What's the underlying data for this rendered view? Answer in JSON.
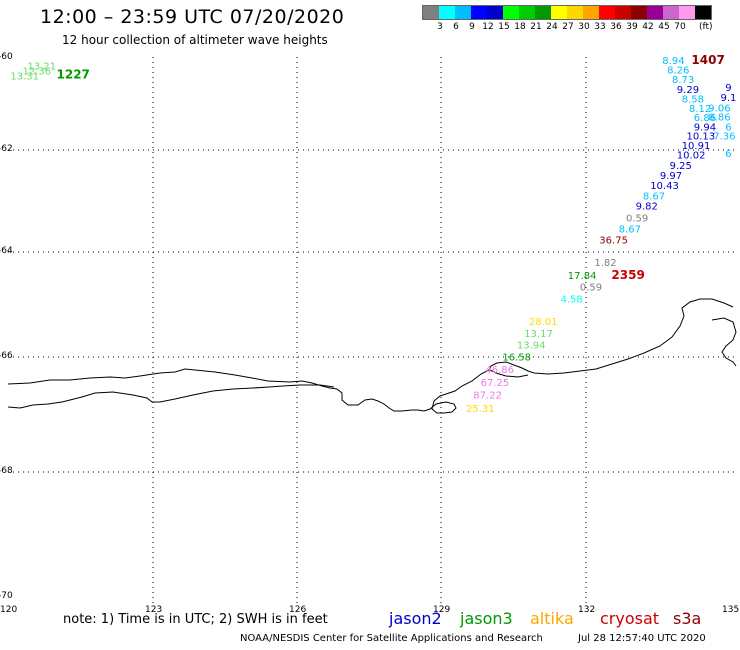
{
  "header": {
    "title": "12:00 – 23:59 UTC 07/20/2020",
    "subtitle": "12 hour collection of altimeter wave heights"
  },
  "legend": {
    "unit": "(ft)",
    "colors": [
      "#808080",
      "#00ffff",
      "#00bfff",
      "#0000ff",
      "#0000cd",
      "#00ff00",
      "#00cd00",
      "#009900",
      "#ffff00",
      "#ffd700",
      "#ffa500",
      "#ff0000",
      "#cd0000",
      "#8b0000",
      "#990099",
      "#cc66cc",
      "#ff99ee",
      "#000000"
    ],
    "ticks": [
      "3",
      "6",
      "9",
      "12",
      "15",
      "18",
      "21",
      "24",
      "27",
      "30",
      "33",
      "36",
      "39",
      "42",
      "45",
      "70"
    ]
  },
  "axes": {
    "lon_ticks": [
      "120",
      "123",
      "126",
      "129",
      "132",
      "135"
    ],
    "lat_ticks": [
      "-60",
      "-62",
      "-64",
      "-66",
      "-68",
      "-70"
    ]
  },
  "footer": {
    "note": "note: 1) Time is in UTC; 2) SWH is in feet",
    "credit": "NOAA/NESDIS Center for Satellite Applications and Research",
    "timestamp": "Jul 28 12:57:40 UTC 2020"
  },
  "satellites": [
    {
      "name": "jason2",
      "color": "#0000cd"
    },
    {
      "name": "jason3",
      "color": "#009900"
    },
    {
      "name": "altika",
      "color": "#ffa500"
    },
    {
      "name": "cryosat",
      "color": "#cd0000"
    },
    {
      "name": "s3a",
      "color": "#8b0000"
    }
  ],
  "observations": [
    {
      "lon": 120.4,
      "lat": -60.14,
      "text": "13.21",
      "color": "#66dd66"
    },
    {
      "lon": 120.3,
      "lat": -60.25,
      "text": "12.36",
      "color": "#66dd66"
    },
    {
      "lon": 120.05,
      "lat": -60.35,
      "text": "13.31",
      "color": "#66dd66"
    },
    {
      "lon": 121.0,
      "lat": -60.33,
      "text": "1227",
      "color": "#009900",
      "time": true
    },
    {
      "lon": 133.5,
      "lat": -60.02,
      "text": "8.94",
      "color": "#00bfff"
    },
    {
      "lon": 134.1,
      "lat": -60.02,
      "text": "1407",
      "color": "#8b0000",
      "time": true
    },
    {
      "lon": 133.6,
      "lat": -60.23,
      "text": "8.26",
      "color": "#00bfff"
    },
    {
      "lon": 133.7,
      "lat": -60.43,
      "text": "8.73",
      "color": "#00bfff"
    },
    {
      "lon": 133.8,
      "lat": -60.65,
      "text": "9.29",
      "color": "#0000cd"
    },
    {
      "lon": 134.8,
      "lat": -60.6,
      "text": "9",
      "color": "#0000cd"
    },
    {
      "lon": 133.9,
      "lat": -60.85,
      "text": "8.58",
      "color": "#00bfff"
    },
    {
      "lon": 134.7,
      "lat": -60.82,
      "text": "9.1",
      "color": "#0000cd"
    },
    {
      "lon": 134.05,
      "lat": -61.05,
      "text": "8.12",
      "color": "#00bfff"
    },
    {
      "lon": 134.45,
      "lat": -61.04,
      "text": "9.06",
      "color": "#00bfff"
    },
    {
      "lon": 134.15,
      "lat": -61.25,
      "text": "6.86",
      "color": "#00bfff"
    },
    {
      "lon": 134.45,
      "lat": -61.24,
      "text": "8.86",
      "color": "#00bfff"
    },
    {
      "lon": 134.15,
      "lat": -61.45,
      "text": "9.94",
      "color": "#0000cd"
    },
    {
      "lon": 134.8,
      "lat": -61.45,
      "text": "6",
      "color": "#00bfff"
    },
    {
      "lon": 134.0,
      "lat": -61.65,
      "text": "10.13",
      "color": "#0000cd"
    },
    {
      "lon": 134.55,
      "lat": -61.65,
      "text": "7.36",
      "color": "#00bfff"
    },
    {
      "lon": 133.9,
      "lat": -61.85,
      "text": "10.91",
      "color": "#0000cd"
    },
    {
      "lon": 133.8,
      "lat": -62.05,
      "text": "10.02",
      "color": "#0000cd"
    },
    {
      "lon": 134.8,
      "lat": -62.02,
      "text": "6",
      "color": "#00bfff"
    },
    {
      "lon": 133.65,
      "lat": -62.25,
      "text": "9.25",
      "color": "#0000cd"
    },
    {
      "lon": 133.45,
      "lat": -62.45,
      "text": "9.97",
      "color": "#0000cd"
    },
    {
      "lon": 133.25,
      "lat": -62.65,
      "text": "10.43",
      "color": "#0000cd"
    },
    {
      "lon": 133.1,
      "lat": -62.85,
      "text": "8.67",
      "color": "#00bfff"
    },
    {
      "lon": 132.95,
      "lat": -63.05,
      "text": "9.82",
      "color": "#0000cd"
    },
    {
      "lon": 132.75,
      "lat": -63.28,
      "text": "0.59",
      "color": "#808080"
    },
    {
      "lon": 132.6,
      "lat": -63.5,
      "text": "8.67",
      "color": "#00bfff"
    },
    {
      "lon": 132.2,
      "lat": -63.72,
      "text": "36.75",
      "color": "#8b0000"
    },
    {
      "lon": 132.1,
      "lat": -64.15,
      "text": "1.82",
      "color": "#808080"
    },
    {
      "lon": 131.55,
      "lat": -64.4,
      "text": "17.84",
      "color": "#009900"
    },
    {
      "lon": 132.45,
      "lat": -64.4,
      "text": "2359",
      "color": "#cd0000",
      "time": true
    },
    {
      "lon": 131.8,
      "lat": -64.62,
      "text": "0.59",
      "color": "#808080"
    },
    {
      "lon": 131.4,
      "lat": -64.85,
      "text": "4.58",
      "color": "#00ffff"
    },
    {
      "lon": 130.75,
      "lat": -65.28,
      "text": "28.01",
      "color": "#ffd700"
    },
    {
      "lon": 130.65,
      "lat": -65.5,
      "text": "13.17",
      "color": "#66dd66"
    },
    {
      "lon": 130.5,
      "lat": -65.72,
      "text": "13.94",
      "color": "#66dd66"
    },
    {
      "lon": 130.2,
      "lat": -65.95,
      "text": "16.58",
      "color": "#009900"
    },
    {
      "lon": 129.85,
      "lat": -66.17,
      "text": "46.86",
      "color": "#ee77ee"
    },
    {
      "lon": 129.75,
      "lat": -66.4,
      "text": "67.25",
      "color": "#ee77ee"
    },
    {
      "lon": 129.6,
      "lat": -66.62,
      "text": "87.22",
      "color": "#ee77ee"
    },
    {
      "lon": 129.45,
      "lat": -66.85,
      "text": "25.31",
      "color": "#ffd700"
    }
  ]
}
